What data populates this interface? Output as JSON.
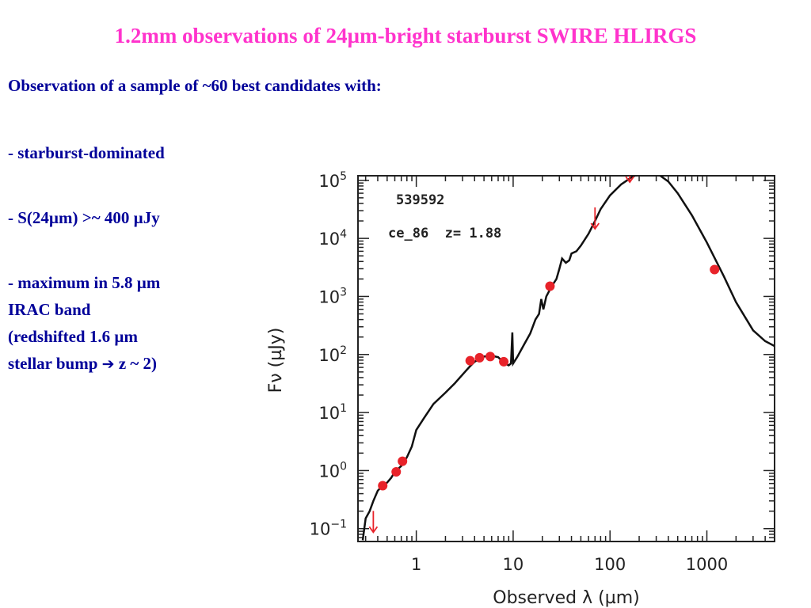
{
  "slide": {
    "title": "1.2mm observations of 24µm-bright starburst SWIRE HLIRGS",
    "intro": "Observation of a sample of ~60 best candidates with:",
    "bullets": {
      "b1": " - starburst-dominated",
      "b2": " - S(24µm) >~ 400 µJy",
      "b3_line1": " - maximum in 5.8 µm",
      "b3_line2": "IRAC band",
      "b3_line3": "(redshifted 1.6 µm",
      "b3_line4_pre": "stellar bump",
      "b3_arrow": "➔",
      "b3_line4_post": " z ~ 2)"
    }
  },
  "chart_data": {
    "type": "line+scatter",
    "xscale": "log",
    "yscale": "log",
    "xlim": [
      0.25,
      5000
    ],
    "ylim": [
      0.06,
      120000
    ],
    "xticks": [
      {
        "value": 1,
        "label": "1"
      },
      {
        "value": 10,
        "label": "10"
      },
      {
        "value": 100,
        "label": "100"
      },
      {
        "value": 1000,
        "label": "1000"
      }
    ],
    "yticks": [
      {
        "value": 0.1,
        "base": "10",
        "exp": "−1"
      },
      {
        "value": 1,
        "base": "10",
        "exp": "0"
      },
      {
        "value": 10,
        "base": "10",
        "exp": "1"
      },
      {
        "value": 100,
        "base": "10",
        "exp": "2"
      },
      {
        "value": 1000,
        "base": "10",
        "exp": "3"
      },
      {
        "value": 10000,
        "base": "10",
        "exp": "4"
      },
      {
        "value": 100000,
        "base": "10",
        "exp": "5"
      }
    ],
    "xlabel": "Observed λ (µm)",
    "ylabel": "Fν (µJy)",
    "annotations": [
      "539592",
      "ce_86  z= 1.88"
    ],
    "colors": {
      "model": "#111111",
      "points": "#e8232a"
    },
    "model_sed": [
      [
        0.28,
        0.063
      ],
      [
        0.3,
        0.15
      ],
      [
        0.33,
        0.2
      ],
      [
        0.36,
        0.3
      ],
      [
        0.4,
        0.45
      ],
      [
        0.45,
        0.55
      ],
      [
        0.5,
        0.62
      ],
      [
        0.55,
        0.75
      ],
      [
        0.6,
        0.95
      ],
      [
        0.7,
        1.2
      ],
      [
        0.8,
        1.7
      ],
      [
        0.9,
        2.6
      ],
      [
        1.0,
        5.0
      ],
      [
        1.2,
        8.0
      ],
      [
        1.5,
        14
      ],
      [
        2.0,
        22
      ],
      [
        2.5,
        32
      ],
      [
        3.0,
        45
      ],
      [
        3.5,
        60
      ],
      [
        4.0,
        75
      ],
      [
        4.5,
        83
      ],
      [
        5.0,
        92
      ],
      [
        6.0,
        95
      ],
      [
        7.0,
        90
      ],
      [
        8.0,
        72
      ],
      [
        9.0,
        65
      ],
      [
        9.5,
        70
      ],
      [
        9.8,
        240
      ],
      [
        10.0,
        70
      ],
      [
        11.0,
        90
      ],
      [
        13.0,
        150
      ],
      [
        15.0,
        230
      ],
      [
        17.0,
        400
      ],
      [
        18.5,
        500
      ],
      [
        19.5,
        900
      ],
      [
        20.5,
        600
      ],
      [
        22.0,
        1000
      ],
      [
        25.0,
        1500
      ],
      [
        28.0,
        2000
      ],
      [
        30.0,
        3000
      ],
      [
        32.0,
        4500
      ],
      [
        35.0,
        3800
      ],
      [
        38.0,
        4200
      ],
      [
        40.0,
        5500
      ],
      [
        45.0,
        6000
      ],
      [
        50.0,
        7500
      ],
      [
        60.0,
        12000
      ],
      [
        70.0,
        20000
      ],
      [
        80.0,
        32000
      ],
      [
        100.0,
        55000
      ],
      [
        130.0,
        85000
      ],
      [
        170.0,
        115000
      ],
      [
        220.0,
        140000
      ],
      [
        300.0,
        135000
      ],
      [
        400.0,
        95000
      ],
      [
        500.0,
        60000
      ],
      [
        700.0,
        25000
      ],
      [
        1000.0,
        8500
      ],
      [
        1500.0,
        2200
      ],
      [
        2000.0,
        800
      ],
      [
        3000.0,
        260
      ],
      [
        4000.0,
        170
      ],
      [
        5000.0,
        140
      ]
    ],
    "detections": [
      {
        "x": 0.45,
        "y": 0.55
      },
      {
        "x": 0.62,
        "y": 0.95
      },
      {
        "x": 0.72,
        "y": 1.45
      },
      {
        "x": 3.6,
        "y": 78
      },
      {
        "x": 4.5,
        "y": 88
      },
      {
        "x": 5.8,
        "y": 92
      },
      {
        "x": 8.0,
        "y": 75
      },
      {
        "x": 24.0,
        "y": 1500
      },
      {
        "x": 1200.0,
        "y": 2900
      }
    ],
    "upper_limits": [
      {
        "x": 0.36,
        "y": 0.13
      },
      {
        "x": 70.0,
        "y": 22000
      },
      {
        "x": 160.0,
        "y": 140000
      }
    ]
  }
}
